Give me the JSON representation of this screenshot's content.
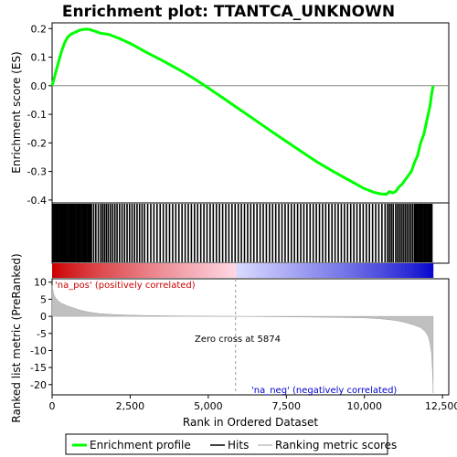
{
  "chart_data": {
    "type": "line",
    "title": "Enrichment plot: TTANTCA_UNKNOWN",
    "xlabel": "Rank in Ordered Dataset",
    "ylabel_top": "Enrichment score (ES)",
    "ylabel_bottom": "Ranked list metric (PreRanked)",
    "xlim": [
      0,
      12700
    ],
    "x_ticks": [
      0,
      2500,
      5000,
      7500,
      10000,
      12500
    ],
    "x_tick_labels": [
      "0",
      "2,500",
      "5,000",
      "7,500",
      "10,000",
      "12,500"
    ],
    "es_ylim": [
      -0.41,
      0.22
    ],
    "es_ticks": [
      0.2,
      0.1,
      0.0,
      -0.1,
      -0.2,
      -0.3,
      -0.4
    ],
    "es_tick_labels": [
      "0.2",
      "0.1",
      "0.0",
      "-0.1",
      "-0.2",
      "-0.3",
      "-0.4"
    ],
    "metric_ylim": [
      -23,
      11
    ],
    "metric_ticks": [
      10,
      5,
      0,
      -5,
      -10,
      -15,
      -20
    ],
    "metric_tick_labels": [
      "10",
      "5",
      "0",
      "-5",
      "-10",
      "-15",
      "-20"
    ],
    "total_genes": 12200,
    "zero_cross": 5874,
    "annotations": {
      "pos": "'na_pos' (positively correlated)",
      "neg": "'na_neg' (negatively correlated)",
      "zero_cross": "Zero cross at 5874"
    },
    "enrichment_profile": {
      "x": [
        0,
        100,
        200,
        300,
        400,
        500,
        600,
        700,
        800,
        900,
        1000,
        1100,
        1200,
        1300,
        1400,
        1500,
        1600,
        1800,
        2000,
        2200,
        2500,
        2800,
        3000,
        3500,
        4000,
        4500,
        5000,
        5500,
        5874,
        6500,
        7000,
        7500,
        8000,
        8500,
        9000,
        9500,
        10000,
        10300,
        10500,
        10700,
        10800,
        10900,
        11000,
        11100,
        11200,
        11300,
        11400,
        11500,
        11600,
        11700,
        11800,
        11900,
        12000,
        12100,
        12150,
        12200
      ],
      "y": [
        0.0,
        0.04,
        0.08,
        0.12,
        0.15,
        0.17,
        0.18,
        0.185,
        0.19,
        0.195,
        0.197,
        0.198,
        0.197,
        0.193,
        0.19,
        0.185,
        0.183,
        0.18,
        0.172,
        0.163,
        0.148,
        0.13,
        0.118,
        0.09,
        0.06,
        0.028,
        -0.008,
        -0.045,
        -0.073,
        -0.12,
        -0.158,
        -0.195,
        -0.232,
        -0.268,
        -0.3,
        -0.33,
        -0.36,
        -0.373,
        -0.378,
        -0.38,
        -0.37,
        -0.375,
        -0.37,
        -0.355,
        -0.345,
        -0.33,
        -0.315,
        -0.3,
        -0.27,
        -0.245,
        -0.2,
        -0.17,
        -0.12,
        -0.07,
        -0.03,
        0.0
      ]
    },
    "metric_profile": {
      "x": [
        0,
        50,
        100,
        200,
        300,
        500,
        700,
        900,
        1200,
        1500,
        2000,
        2500,
        3000,
        4000,
        5000,
        5874,
        7000,
        8000,
        9000,
        10000,
        10500,
        11000,
        11300,
        11600,
        11800,
        11950,
        12050,
        12100,
        12150,
        12180,
        12200
      ],
      "y": [
        9.0,
        6.5,
        5.5,
        4.5,
        3.8,
        3.0,
        2.4,
        1.8,
        1.2,
        0.8,
        0.5,
        0.35,
        0.25,
        0.12,
        0.05,
        0.0,
        -0.12,
        -0.2,
        -0.3,
        -0.45,
        -0.7,
        -1.2,
        -1.8,
        -2.6,
        -3.3,
        -4.5,
        -6.0,
        -8.0,
        -11.0,
        -16.0,
        -22.5
      ]
    },
    "hits": [
      10,
      40,
      70,
      100,
      130,
      160,
      190,
      230,
      260,
      290,
      330,
      360,
      400,
      430,
      470,
      500,
      540,
      580,
      610,
      650,
      690,
      720,
      760,
      800,
      830,
      870,
      910,
      950,
      990,
      1030,
      1060,
      1100,
      1140,
      1180,
      1220,
      1260,
      1330,
      1400,
      1480,
      1560,
      1620,
      1680,
      1740,
      1800,
      1870,
      1940,
      2010,
      2080,
      2160,
      2240,
      2320,
      2400,
      2480,
      2560,
      2640,
      2720,
      2800,
      2880,
      2960,
      3060,
      3160,
      3260,
      3360,
      3460,
      3560,
      3660,
      3760,
      3860,
      3960,
      4060,
      4160,
      4260,
      4360,
      4460,
      4560,
      4660,
      4760,
      4860,
      4960,
      5060,
      5160,
      5260,
      5360,
      5460,
      5560,
      5660,
      5760,
      5860,
      5960,
      6060,
      6160,
      6260,
      6360,
      6460,
      6560,
      6660,
      6760,
      6860,
      6960,
      7060,
      7160,
      7260,
      7360,
      7460,
      7560,
      7660,
      7760,
      7860,
      7960,
      8060,
      8160,
      8260,
      8360,
      8460,
      8560,
      8660,
      8760,
      8860,
      8960,
      9060,
      9160,
      9260,
      9360,
      9460,
      9560,
      9660,
      9760,
      9860,
      9960,
      10060,
      10160,
      10260,
      10360,
      10460,
      10560,
      10660,
      10740,
      10800,
      10860,
      10920,
      11000,
      11060,
      11120,
      11180,
      11240,
      11300,
      11360,
      11420,
      11480,
      11540,
      11600,
      11640,
      11680,
      11720,
      11760,
      11800,
      11840,
      11880,
      11920,
      11960,
      12000,
      12040,
      12080,
      12120,
      12160
    ],
    "colors": {
      "profile": "#00ff00",
      "hits": "#000000",
      "zero_line": "#888888",
      "metric_fill": "#c0c0c0",
      "pos_text": "#cc0000",
      "neg_text": "#0000cc",
      "bar_red": "#cc0000",
      "bar_blue": "#0000cc"
    },
    "legend": {
      "items": [
        "Enrichment profile",
        "Hits",
        "Ranking metric scores"
      ]
    }
  }
}
